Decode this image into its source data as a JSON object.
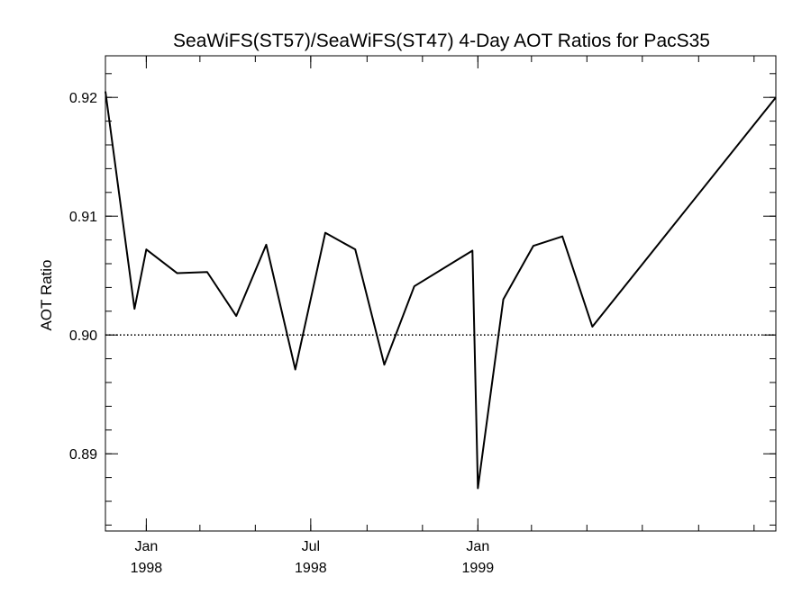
{
  "chart_data": {
    "type": "line",
    "title": "SeaWiFS(ST57)/SeaWiFS(ST47) 4-Day AOT Ratios for PacS35",
    "xlabel": "",
    "ylabel": "AOT Ratio",
    "xlim": [
      "1997-11-17",
      "1999-11-25"
    ],
    "ylim": [
      0.8835,
      0.9235
    ],
    "yticks": [
      "0.89",
      "0.90",
      "0.91",
      "0.92"
    ],
    "xticks": [
      {
        "date": "1998-01-01",
        "month": "Jan",
        "year": "1998"
      },
      {
        "date": "1998-07-01",
        "month": "Jul",
        "year": "1998"
      },
      {
        "date": "1999-01-01",
        "month": "Jan",
        "year": "1999"
      }
    ],
    "reference_line": {
      "y": 0.9,
      "style": "dotted"
    },
    "grid": false,
    "x": [
      "1997-11-17",
      "1997-12-19",
      "1998-01-01",
      "1998-02-04",
      "1998-03-09",
      "1998-04-10",
      "1998-05-13",
      "1998-06-14",
      "1998-07-17",
      "1998-08-19",
      "1998-09-20",
      "1998-10-23",
      "1998-12-26",
      "1999-01-01",
      "1999-01-29",
      "1999-03-03",
      "1999-04-04",
      "1999-05-07",
      "1999-11-25"
    ],
    "series": [
      {
        "values": [
          0.9205,
          0.9022,
          0.9072,
          0.9052,
          0.9053,
          0.9016,
          0.9076,
          0.8971,
          0.9086,
          0.9072,
          0.8975,
          0.9041,
          0.9071,
          0.8871,
          0.903,
          0.9075,
          0.9083,
          0.9007,
          0.92
        ]
      }
    ]
  }
}
